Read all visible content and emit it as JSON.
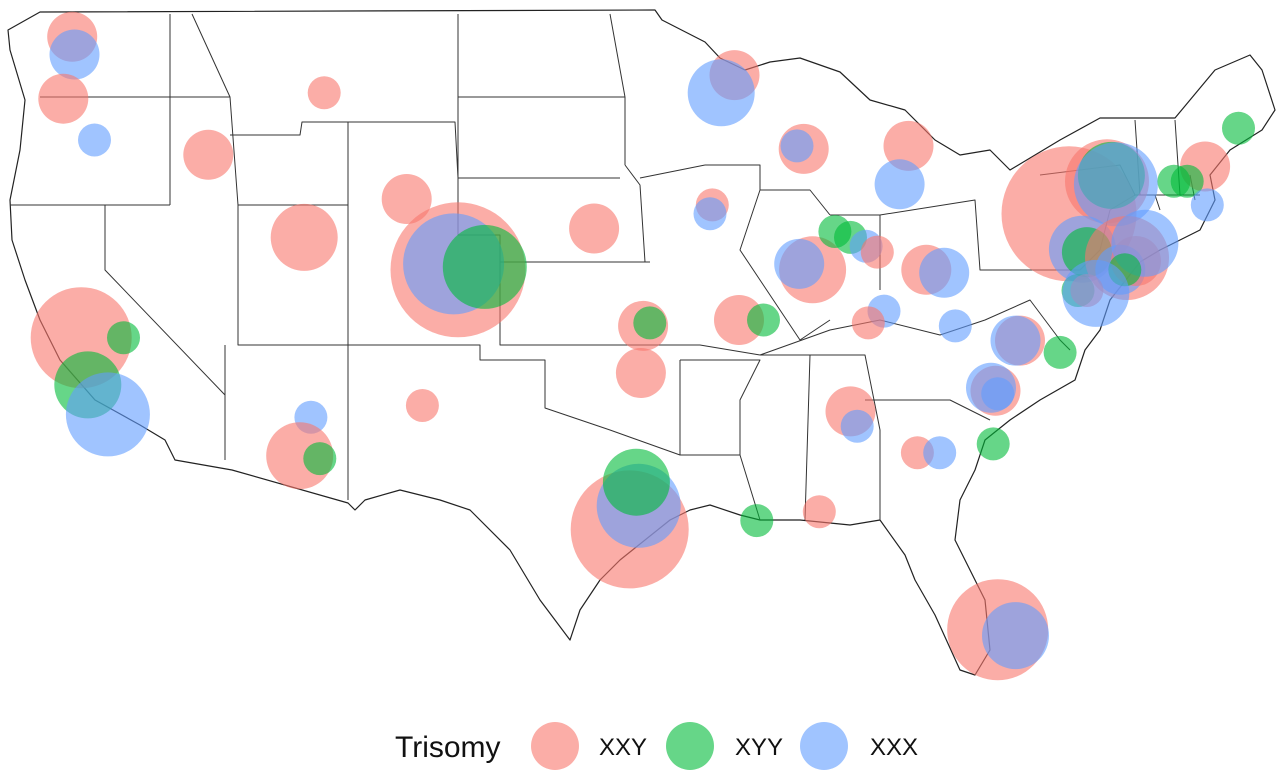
{
  "legend": {
    "title": "Trisomy",
    "items": [
      {
        "key": "XXY",
        "label": "XXY",
        "color": "#F8766D"
      },
      {
        "key": "XYY",
        "label": "XYY",
        "color": "#00BA38"
      },
      {
        "key": "XXX",
        "label": "XXX",
        "color": "#619CFF"
      }
    ]
  },
  "markers": [
    {
      "group": "XXY",
      "lon": -122.3,
      "lat": 47.6,
      "size": 2
    },
    {
      "group": "XXX",
      "lon": -122.2,
      "lat": 47.0,
      "size": 2
    },
    {
      "group": "XXY",
      "lon": -122.7,
      "lat": 45.5,
      "size": 2
    },
    {
      "group": "XXX",
      "lon": -121.3,
      "lat": 44.1,
      "size": 1
    },
    {
      "group": "XXY",
      "lon": -116.2,
      "lat": 43.6,
      "size": 2
    },
    {
      "group": "XXY",
      "lon": -111.0,
      "lat": 45.7,
      "size": 1
    },
    {
      "group": "XXY",
      "lon": -107.3,
      "lat": 42.1,
      "size": 2
    },
    {
      "group": "XXY",
      "lon": -111.9,
      "lat": 40.8,
      "size": 3
    },
    {
      "group": "XXY",
      "lon": -105.0,
      "lat": 39.7,
      "size": 7
    },
    {
      "group": "XXX",
      "lon": -105.2,
      "lat": 39.9,
      "size": 5
    },
    {
      "group": "XYY",
      "lon": -103.8,
      "lat": 39.8,
      "size": 4
    },
    {
      "group": "XXY",
      "lon": -98.9,
      "lat": 41.1,
      "size": 2
    },
    {
      "group": "XXY",
      "lon": -121.9,
      "lat": 37.4,
      "size": 5
    },
    {
      "group": "XYY",
      "lon": -120.0,
      "lat": 37.4,
      "size": 1
    },
    {
      "group": "XYY",
      "lon": -121.6,
      "lat": 35.8,
      "size": 3
    },
    {
      "group": "XXX",
      "lon": -120.7,
      "lat": 34.8,
      "size": 4
    },
    {
      "group": "XXX",
      "lon": -111.6,
      "lat": 34.7,
      "size": 1
    },
    {
      "group": "XXY",
      "lon": -112.1,
      "lat": 33.4,
      "size": 3
    },
    {
      "group": "XYY",
      "lon": -111.2,
      "lat": 33.3,
      "size": 1
    },
    {
      "group": "XXY",
      "lon": -106.6,
      "lat": 35.1,
      "size": 1
    },
    {
      "group": "XXY",
      "lon": -96.7,
      "lat": 37.8,
      "size": 2
    },
    {
      "group": "XYY",
      "lon": -96.4,
      "lat": 37.9,
      "size": 1
    },
    {
      "group": "XXY",
      "lon": -96.8,
      "lat": 36.2,
      "size": 2
    },
    {
      "group": "XXY",
      "lon": -97.3,
      "lat": 30.9,
      "size": 6
    },
    {
      "group": "XXX",
      "lon": -96.9,
      "lat": 31.7,
      "size": 4
    },
    {
      "group": "XYY",
      "lon": -97.0,
      "lat": 32.5,
      "size": 3
    },
    {
      "group": "XXY",
      "lon": -92.6,
      "lat": 46.3,
      "size": 2
    },
    {
      "group": "XXX",
      "lon": -93.2,
      "lat": 45.7,
      "size": 3
    },
    {
      "group": "XXY",
      "lon": -93.6,
      "lat": 41.9,
      "size": 1
    },
    {
      "group": "XXX",
      "lon": -93.7,
      "lat": 41.6,
      "size": 1
    },
    {
      "group": "XXY",
      "lon": -92.4,
      "lat": 38.0,
      "size": 2
    },
    {
      "group": "XYY",
      "lon": -91.3,
      "lat": 38.0,
      "size": 1
    },
    {
      "group": "XYY",
      "lon": -91.6,
      "lat": 31.2,
      "size": 1
    },
    {
      "group": "XXY",
      "lon": -88.8,
      "lat": 31.5,
      "size": 1
    },
    {
      "group": "XXY",
      "lon": -89.5,
      "lat": 43.8,
      "size": 2
    },
    {
      "group": "XXX",
      "lon": -89.8,
      "lat": 43.9,
      "size": 1
    },
    {
      "group": "XXY",
      "lon": -84.8,
      "lat": 43.9,
      "size": 2
    },
    {
      "group": "XXX",
      "lon": -85.2,
      "lat": 42.6,
      "size": 2
    },
    {
      "group": "XXY",
      "lon": -89.1,
      "lat": 39.7,
      "size": 3
    },
    {
      "group": "XXX",
      "lon": -89.7,
      "lat": 39.9,
      "size": 2
    },
    {
      "group": "XYY",
      "lon": -88.1,
      "lat": 41.0,
      "size": 1
    },
    {
      "group": "XYY",
      "lon": -87.4,
      "lat": 40.8,
      "size": 1
    },
    {
      "group": "XXX",
      "lon": -86.7,
      "lat": 40.5,
      "size": 1
    },
    {
      "group": "XXY",
      "lon": -86.2,
      "lat": 40.3,
      "size": 1
    },
    {
      "group": "XXY",
      "lon": -84.0,
      "lat": 39.7,
      "size": 2
    },
    {
      "group": "XXX",
      "lon": -83.2,
      "lat": 39.6,
      "size": 2
    },
    {
      "group": "XXX",
      "lon": -85.9,
      "lat": 38.3,
      "size": 1
    },
    {
      "group": "XXY",
      "lon": -86.6,
      "lat": 37.9,
      "size": 1
    },
    {
      "group": "XXX",
      "lon": -82.7,
      "lat": 37.8,
      "size": 1
    },
    {
      "group": "XXY",
      "lon": -87.4,
      "lat": 34.9,
      "size": 2
    },
    {
      "group": "XXX",
      "lon": -87.1,
      "lat": 34.4,
      "size": 1
    },
    {
      "group": "XXY",
      "lon": -84.4,
      "lat": 33.5,
      "size": 1
    },
    {
      "group": "XXX",
      "lon": -83.4,
      "lat": 33.5,
      "size": 1
    },
    {
      "group": "XYY",
      "lon": -81.0,
      "lat": 33.8,
      "size": 1
    },
    {
      "group": "XXY",
      "lon": -80.9,
      "lat": 35.6,
      "size": 2
    },
    {
      "group": "XXX",
      "lon": -81.1,
      "lat": 35.7,
      "size": 2
    },
    {
      "group": "XXX",
      "lon": -80.8,
      "lat": 35.5,
      "size": 1
    },
    {
      "group": "XXY",
      "lon": -79.8,
      "lat": 37.3,
      "size": 2
    },
    {
      "group": "XXX",
      "lon": -80.0,
      "lat": 37.3,
      "size": 2
    },
    {
      "group": "XYY",
      "lon": -78.0,
      "lat": 36.9,
      "size": 1
    },
    {
      "group": "XXY",
      "lon": -80.8,
      "lat": 27.5,
      "size": 5
    },
    {
      "group": "XXX",
      "lon": -80.0,
      "lat": 27.3,
      "size": 3
    },
    {
      "group": "XXY",
      "lon": -77.6,
      "lat": 41.6,
      "size": 7
    },
    {
      "group": "XXY",
      "lon": -75.9,
      "lat": 42.7,
      "size": 4
    },
    {
      "group": "XYY",
      "lon": -75.7,
      "lat": 42.9,
      "size": 3
    },
    {
      "group": "XXX",
      "lon": -75.5,
      "lat": 42.6,
      "size": 4
    },
    {
      "group": "XXX",
      "lon": -77.0,
      "lat": 40.4,
      "size": 3
    },
    {
      "group": "XYY",
      "lon": -76.8,
      "lat": 40.3,
      "size": 2
    },
    {
      "group": "XXY",
      "lon": -75.0,
      "lat": 40.1,
      "size": 4
    },
    {
      "group": "XXX",
      "lon": -75.3,
      "lat": 39.7,
      "size": 2
    },
    {
      "group": "XXY",
      "lon": -74.6,
      "lat": 40.0,
      "size": 2
    },
    {
      "group": "XXX",
      "lon": -74.2,
      "lat": 40.6,
      "size": 3
    },
    {
      "group": "XYY",
      "lon": -75.1,
      "lat": 39.7,
      "size": 1
    },
    {
      "group": "XYY",
      "lon": -77.2,
      "lat": 39.0,
      "size": 1
    },
    {
      "group": "XXY",
      "lon": -76.8,
      "lat": 39.0,
      "size": 1
    },
    {
      "group": "XXX",
      "lon": -76.4,
      "lat": 38.9,
      "size": 3
    },
    {
      "group": "XXY",
      "lon": -71.5,
      "lat": 43.2,
      "size": 2
    },
    {
      "group": "XYY",
      "lon": -70.0,
      "lat": 44.5,
      "size": 1
    },
    {
      "group": "XYY",
      "lon": -72.9,
      "lat": 42.7,
      "size": 1
    },
    {
      "group": "XYY",
      "lon": -72.3,
      "lat": 42.7,
      "size": 1
    },
    {
      "group": "XXX",
      "lon": -71.4,
      "lat": 41.9,
      "size": 1
    }
  ]
}
